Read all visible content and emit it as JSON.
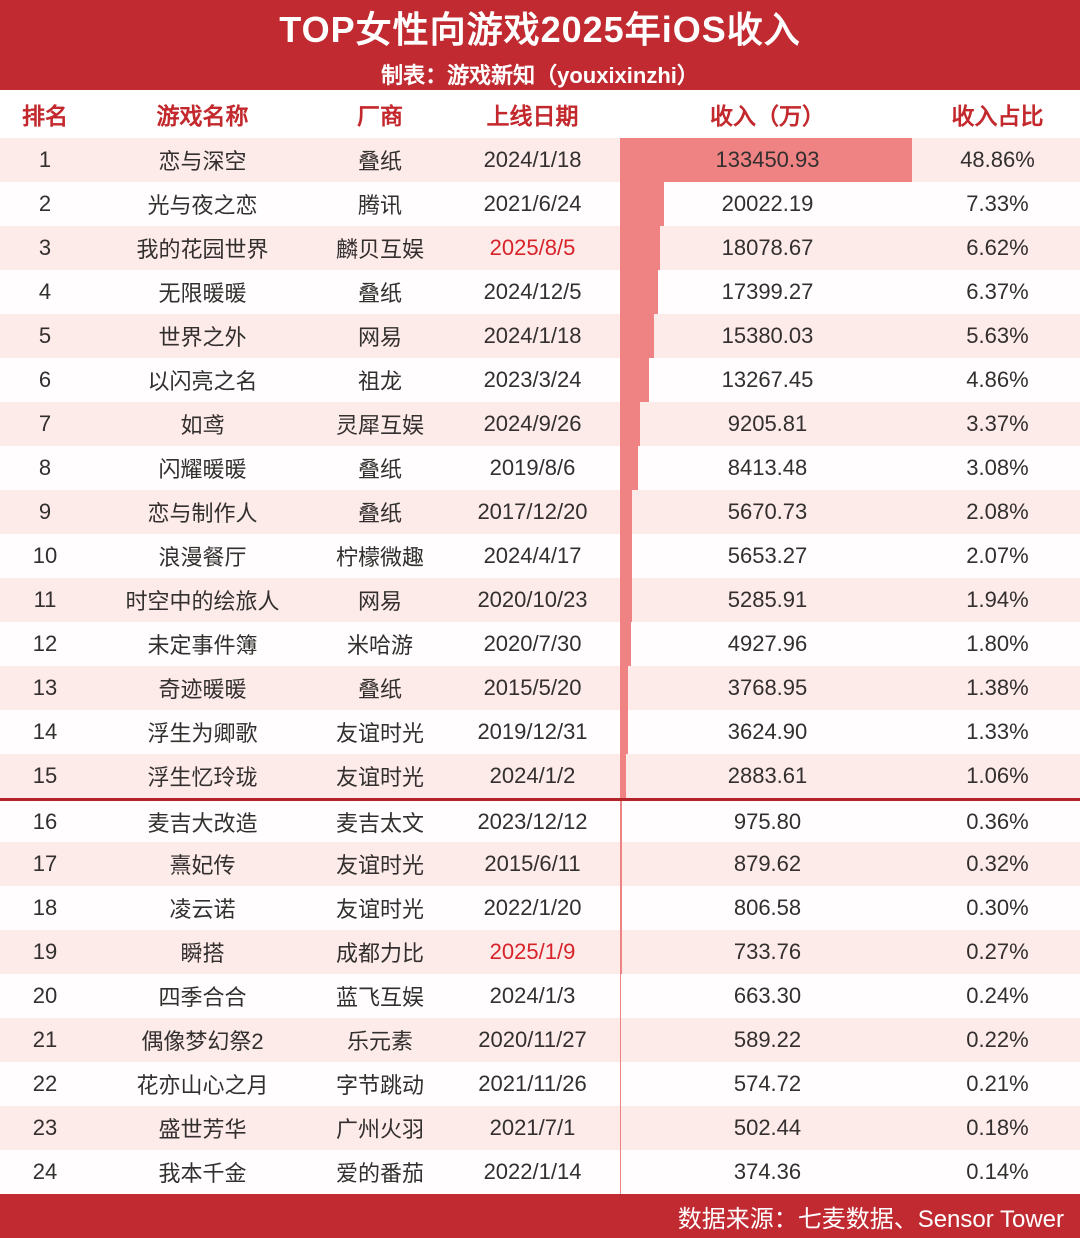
{
  "header": {
    "title": "TOP女性向游戏2025年iOS收入",
    "subtitle": "制表：游戏新知（youxixinzhi）"
  },
  "columns": [
    "排名",
    "游戏名称",
    "厂商",
    "上线日期",
    "收入（万）",
    "收入占比"
  ],
  "footer": {
    "source": "数据来源：七麦数据、Sensor Tower"
  },
  "colors": {
    "header_bg": "#c02a30",
    "bar": "#ef8383",
    "row_alt": "#fcebe9",
    "highlight_date": "#d8232a",
    "header_text": "#c3282d"
  },
  "chart_data": {
    "type": "table",
    "title": "TOP女性向游戏2025年iOS收入",
    "subtitle": "制表：游戏新知（youxixinzhi）",
    "columns": [
      "排名",
      "游戏名称",
      "厂商",
      "上线日期",
      "收入（万）",
      "收入占比"
    ],
    "bar_column": "收入（万）",
    "max_revenue": 133450.93,
    "divider_after_rank": 15,
    "rows": [
      {
        "rank": "1",
        "game": "恋与深空",
        "company": "叠纸",
        "date": "2024/1/18",
        "date_highlight": false,
        "revenue": "133450.93",
        "share": "48.86%"
      },
      {
        "rank": "2",
        "game": "光与夜之恋",
        "company": "腾讯",
        "date": "2021/6/24",
        "date_highlight": false,
        "revenue": "20022.19",
        "share": "7.33%"
      },
      {
        "rank": "3",
        "game": "我的花园世界",
        "company": "麟贝互娱",
        "date": "2025/8/5",
        "date_highlight": true,
        "revenue": "18078.67",
        "share": "6.62%"
      },
      {
        "rank": "4",
        "game": "无限暖暖",
        "company": "叠纸",
        "date": "2024/12/5",
        "date_highlight": false,
        "revenue": "17399.27",
        "share": "6.37%"
      },
      {
        "rank": "5",
        "game": "世界之外",
        "company": "网易",
        "date": "2024/1/18",
        "date_highlight": false,
        "revenue": "15380.03",
        "share": "5.63%"
      },
      {
        "rank": "6",
        "game": "以闪亮之名",
        "company": "祖龙",
        "date": "2023/3/24",
        "date_highlight": false,
        "revenue": "13267.45",
        "share": "4.86%"
      },
      {
        "rank": "7",
        "game": "如鸢",
        "company": "灵犀互娱",
        "date": "2024/9/26",
        "date_highlight": false,
        "revenue": "9205.81",
        "share": "3.37%"
      },
      {
        "rank": "8",
        "game": "闪耀暖暖",
        "company": "叠纸",
        "date": "2019/8/6",
        "date_highlight": false,
        "revenue": "8413.48",
        "share": "3.08%"
      },
      {
        "rank": "9",
        "game": "恋与制作人",
        "company": "叠纸",
        "date": "2017/12/20",
        "date_highlight": false,
        "revenue": "5670.73",
        "share": "2.08%"
      },
      {
        "rank": "10",
        "game": "浪漫餐厅",
        "company": "柠檬微趣",
        "date": "2024/4/17",
        "date_highlight": false,
        "revenue": "5653.27",
        "share": "2.07%"
      },
      {
        "rank": "11",
        "game": "时空中的绘旅人",
        "company": "网易",
        "date": "2020/10/23",
        "date_highlight": false,
        "revenue": "5285.91",
        "share": "1.94%"
      },
      {
        "rank": "12",
        "game": "未定事件簿",
        "company": "米哈游",
        "date": "2020/7/30",
        "date_highlight": false,
        "revenue": "4927.96",
        "share": "1.80%"
      },
      {
        "rank": "13",
        "game": "奇迹暖暖",
        "company": "叠纸",
        "date": "2015/5/20",
        "date_highlight": false,
        "revenue": "3768.95",
        "share": "1.38%"
      },
      {
        "rank": "14",
        "game": "浮生为卿歌",
        "company": "友谊时光",
        "date": "2019/12/31",
        "date_highlight": false,
        "revenue": "3624.90",
        "share": "1.33%"
      },
      {
        "rank": "15",
        "game": "浮生忆玲珑",
        "company": "友谊时光",
        "date": "2024/1/2",
        "date_highlight": false,
        "revenue": "2883.61",
        "share": "1.06%"
      },
      {
        "rank": "16",
        "game": "麦吉大改造",
        "company": "麦吉太文",
        "date": "2023/12/12",
        "date_highlight": false,
        "revenue": "975.80",
        "share": "0.36%"
      },
      {
        "rank": "17",
        "game": "熹妃传",
        "company": "友谊时光",
        "date": "2015/6/11",
        "date_highlight": false,
        "revenue": "879.62",
        "share": "0.32%"
      },
      {
        "rank": "18",
        "game": "凌云诺",
        "company": "友谊时光",
        "date": "2022/1/20",
        "date_highlight": false,
        "revenue": "806.58",
        "share": "0.30%"
      },
      {
        "rank": "19",
        "game": "瞬搭",
        "company": "成都力比",
        "date": "2025/1/9",
        "date_highlight": true,
        "revenue": "733.76",
        "share": "0.27%"
      },
      {
        "rank": "20",
        "game": "四季合合",
        "company": "蓝飞互娱",
        "date": "2024/1/3",
        "date_highlight": false,
        "revenue": "663.30",
        "share": "0.24%"
      },
      {
        "rank": "21",
        "game": "偶像梦幻祭2",
        "company": "乐元素",
        "date": "2020/11/27",
        "date_highlight": false,
        "revenue": "589.22",
        "share": "0.22%"
      },
      {
        "rank": "22",
        "game": "花亦山心之月",
        "company": "字节跳动",
        "date": "2021/11/26",
        "date_highlight": false,
        "revenue": "574.72",
        "share": "0.21%"
      },
      {
        "rank": "23",
        "game": "盛世芳华",
        "company": "广州火羽",
        "date": "2021/7/1",
        "date_highlight": false,
        "revenue": "502.44",
        "share": "0.18%"
      },
      {
        "rank": "24",
        "game": "我本千金",
        "company": "爱的番茄",
        "date": "2022/1/14",
        "date_highlight": false,
        "revenue": "374.36",
        "share": "0.14%"
      }
    ]
  }
}
